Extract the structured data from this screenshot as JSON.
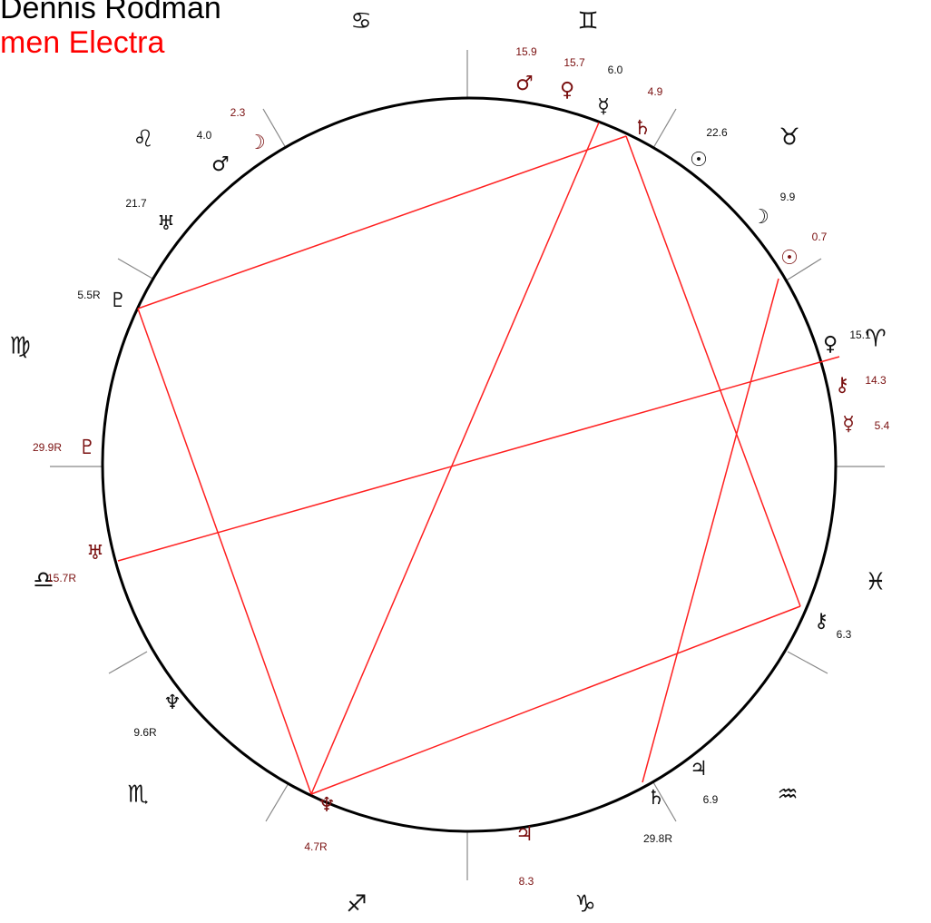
{
  "names": [
    "Dennis Rodman",
    "men Electra"
  ],
  "signs": [
    "♋",
    "♊",
    "♉",
    "♈",
    "♓",
    "♒",
    "♑",
    "♐",
    "♏",
    "♎",
    "♍",
    "♌"
  ],
  "planets": [
    {
      "glyph": "♂",
      "position": "15.9"
    },
    {
      "glyph": "♀",
      "position": "15.7"
    },
    {
      "glyph": "☿",
      "position": "6.0"
    },
    {
      "glyph": "♄",
      "position": "4.9"
    },
    {
      "glyph": "☉",
      "position": "22.6"
    },
    {
      "glyph": "☽",
      "position": "9.9"
    },
    {
      "glyph": "☉",
      "position": "0.7"
    },
    {
      "glyph": "♀",
      "position": "15.1"
    },
    {
      "glyph": "⚷",
      "position": "14.3"
    },
    {
      "glyph": "☿",
      "position": "5.4"
    },
    {
      "glyph": "⚷",
      "position": "6.3"
    },
    {
      "glyph": "♃",
      "position": "6.9"
    },
    {
      "glyph": "♄",
      "position": "29.8R"
    },
    {
      "glyph": "♃",
      "position": "8.3"
    },
    {
      "glyph": "♆",
      "position": "4.7R"
    },
    {
      "glyph": "♆",
      "position": "9.6R"
    },
    {
      "glyph": "♅",
      "position": "15.7R"
    },
    {
      "glyph": "♇",
      "position": "29.9R"
    },
    {
      "glyph": "♇",
      "position": "5.5R"
    },
    {
      "glyph": "♅",
      "position": "21.7"
    },
    {
      "glyph": "♂",
      "position": "4.0"
    },
    {
      "glyph": "☽",
      "position": "2.3"
    }
  ]
}
